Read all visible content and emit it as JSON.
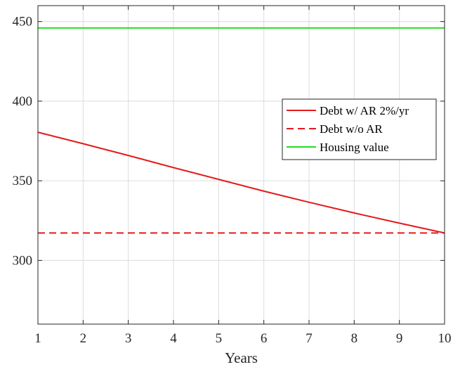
{
  "chart_data": {
    "type": "line",
    "title": "",
    "xlabel": "Years",
    "ylabel": "",
    "xlim": [
      1,
      10
    ],
    "ylim": [
      260,
      460
    ],
    "grid": true,
    "legend_position": "right-center",
    "x_ticks": [
      1,
      2,
      3,
      4,
      5,
      6,
      7,
      8,
      9,
      10
    ],
    "y_ticks": [
      300,
      350,
      400,
      450
    ],
    "x": [
      1,
      2,
      3,
      4,
      5,
      6,
      7,
      8,
      9,
      10
    ],
    "series": [
      {
        "name": "Debt w/ AR 2%/yr",
        "color": "#e41a1c",
        "style": "solid",
        "values": [
          380.5,
          373.3,
          365.9,
          358.3,
          350.9,
          343.5,
          336.5,
          329.8,
          323.4,
          317.2
        ]
      },
      {
        "name": "Debt w/o AR",
        "color": "#e41a1c",
        "style": "dashed",
        "values": [
          317.2,
          317.2,
          317.2,
          317.2,
          317.2,
          317.2,
          317.2,
          317.2,
          317.2,
          317.2
        ]
      },
      {
        "name": "Housing value",
        "color": "#22dd22",
        "style": "solid",
        "values": [
          446,
          446,
          446,
          446,
          446,
          446,
          446,
          446,
          446,
          446
        ]
      }
    ]
  }
}
